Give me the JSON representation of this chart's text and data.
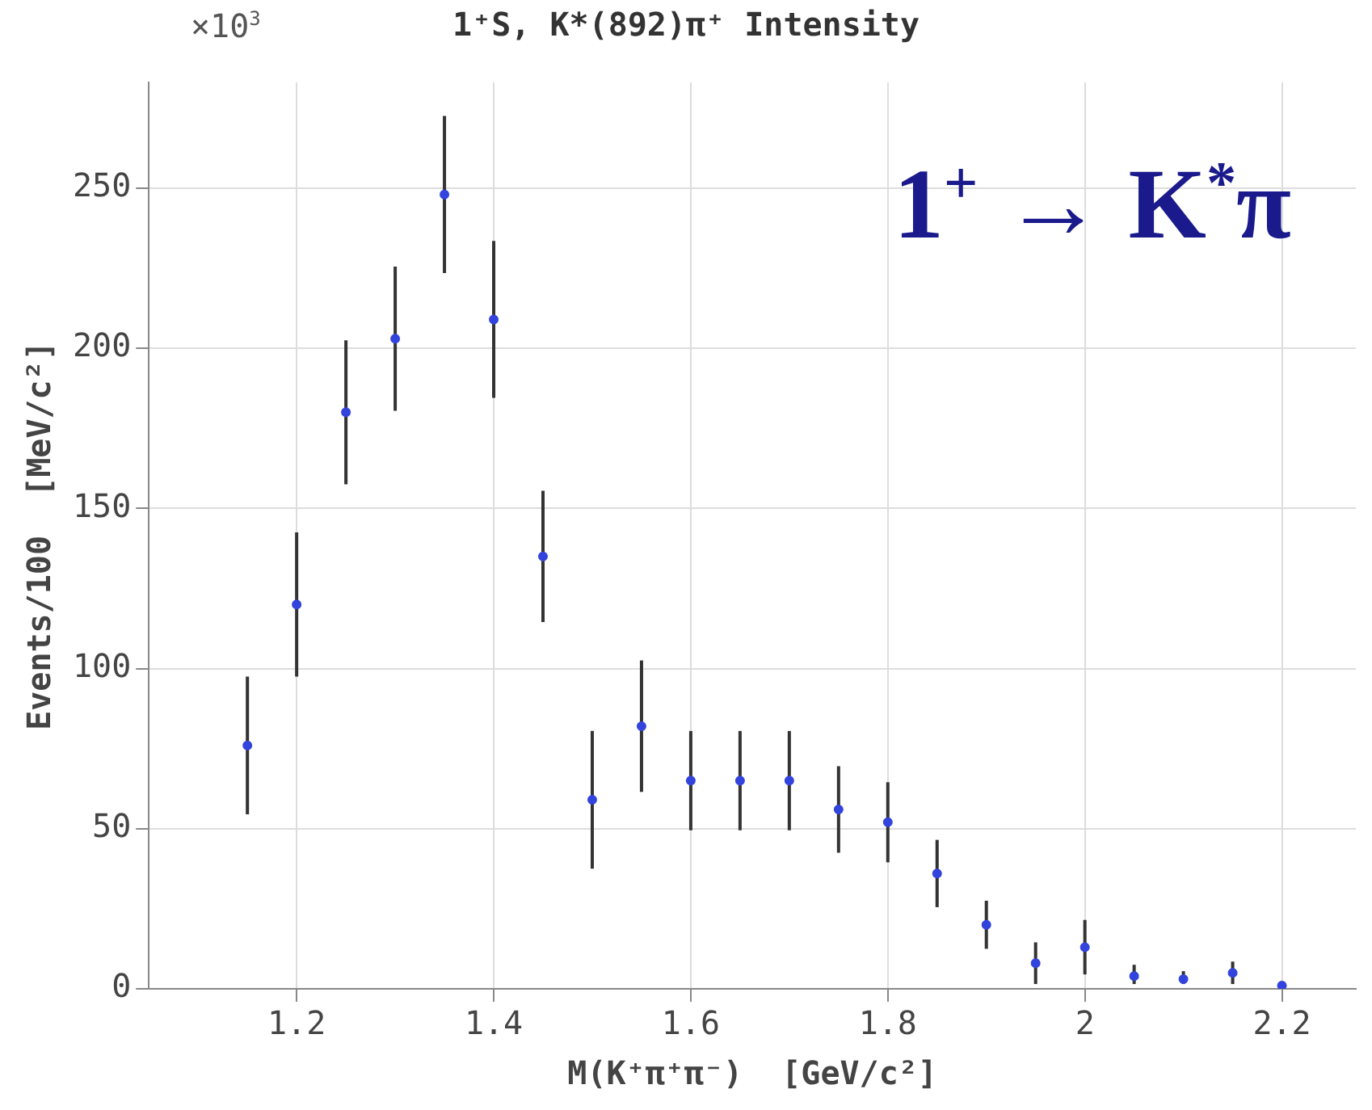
{
  "chart_data": {
    "type": "scatter",
    "title": "1⁺S, K*(892)π⁺ Intensity",
    "xlabel": "M(K⁺π⁺π⁻)  [GeV/c²]",
    "ylabel": "Events/100  [MeV/c²]",
    "annotations": [
      "×10$^{3}$",
      "1$^{+}$ → K$^{*}$π"
    ],
    "x": [
      1.15,
      1.2,
      1.25,
      1.3,
      1.35,
      1.4,
      1.45,
      1.5,
      1.55,
      1.6,
      1.65,
      1.7,
      1.75,
      1.8,
      1.85,
      1.9,
      1.95,
      2.0,
      2.05,
      2.1,
      2.15,
      2.2
    ],
    "series": [
      {
        "color": "#3344dd",
        "values": [
          76,
          120,
          180,
          203,
          248,
          209,
          135,
          59,
          82,
          65,
          65,
          65,
          56,
          52,
          36,
          20,
          8,
          13,
          4,
          3,
          5,
          1
        ],
        "errors": [
          21,
          22,
          22,
          22,
          24,
          24,
          20,
          21,
          20,
          15,
          15,
          15,
          13,
          12,
          10,
          7,
          6,
          8,
          [
            2,
            7
          ],
          [
            2,
            5
          ],
          3,
          null
        ]
      }
    ],
    "xlim": [
      1.05,
      2.275
    ],
    "xticks": [
      1.2,
      1.4,
      1.6,
      1.8,
      2,
      2.2
    ],
    "ylim": [
      0,
      283
    ],
    "yticks": [
      0,
      50,
      100,
      150,
      200,
      250
    ],
    "grid": true,
    "marker": "circle",
    "legend": false
  }
}
